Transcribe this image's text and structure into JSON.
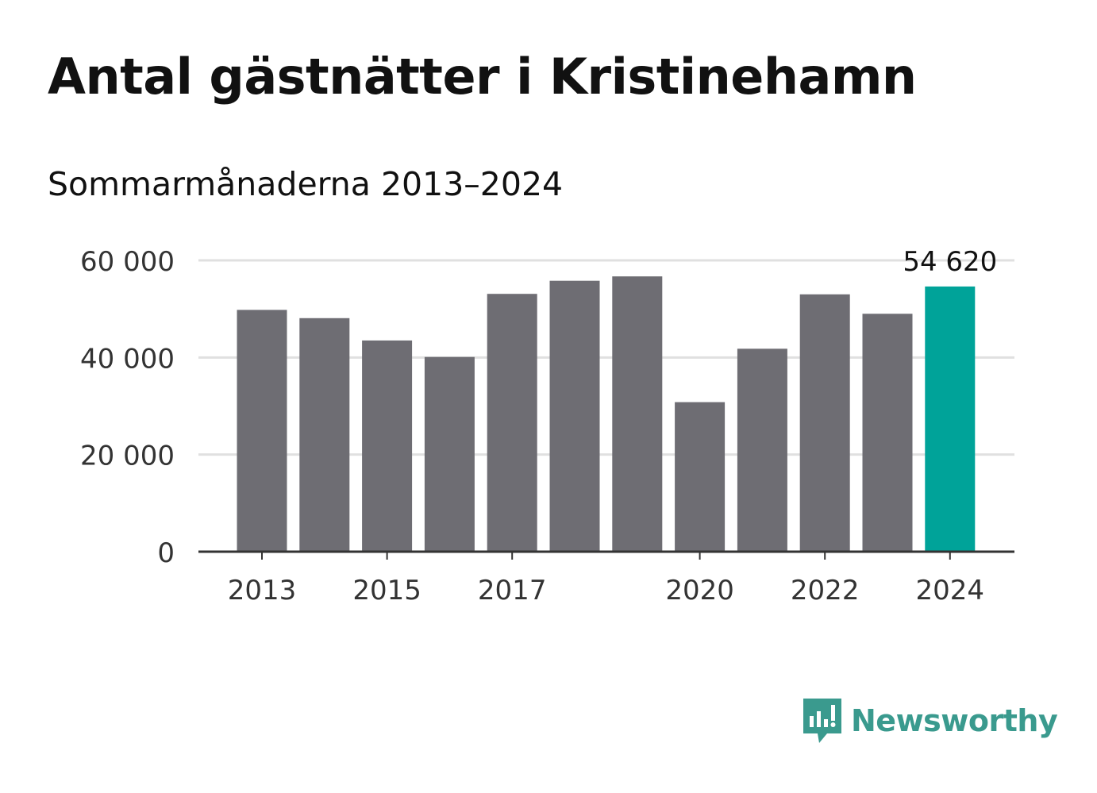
{
  "title": "Antal gästnätter i Kristinehamn",
  "subtitle": "Sommarmånaderna 2013–2024",
  "brand": {
    "name": "Newsworthy",
    "color": "#3a9a8e"
  },
  "colors": {
    "bar": "#6e6d73",
    "highlight": "#00a399",
    "grid": "#e0e0e0",
    "axis": "#333333"
  },
  "chart_data": {
    "type": "bar",
    "categories": [
      "2013",
      "2014",
      "2015",
      "2016",
      "2017",
      "2018",
      "2019",
      "2020",
      "2021",
      "2022",
      "2023",
      "2024"
    ],
    "values": [
      49800,
      48100,
      43500,
      40100,
      53100,
      55800,
      56700,
      30800,
      41800,
      53000,
      49000,
      54620
    ],
    "highlight_index": 11,
    "value_labels": {
      "11": "54 620"
    },
    "x_tick_labels": [
      "2013",
      "2015",
      "2017",
      "2020",
      "2022",
      "2024"
    ],
    "y_ticks": [
      0,
      20000,
      40000,
      60000
    ],
    "y_tick_labels": [
      "0",
      "20 000",
      "40 000",
      "60 000"
    ],
    "ylim": [
      0,
      60000
    ],
    "xlabel": "",
    "ylabel": "",
    "grid": true
  }
}
